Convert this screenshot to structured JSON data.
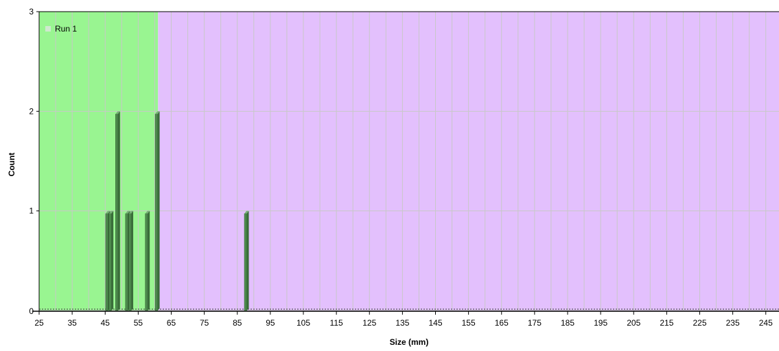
{
  "chart_data": {
    "type": "bar",
    "title": "",
    "xlabel": "Size (mm)",
    "ylabel": "Count",
    "xlim": [
      25,
      249
    ],
    "ylim": [
      0,
      3
    ],
    "x_ticks": [
      25,
      35,
      45,
      55,
      65,
      75,
      85,
      95,
      105,
      115,
      125,
      135,
      145,
      155,
      165,
      175,
      185,
      195,
      205,
      215,
      225,
      235,
      245
    ],
    "y_ticks": [
      0,
      1,
      2,
      3
    ],
    "grid": true,
    "legend_position": "top-left",
    "regions": [
      {
        "from": 25,
        "to": 61,
        "color": "#99f591"
      },
      {
        "from": 61,
        "to": 249,
        "color": "#e3c0fd"
      }
    ],
    "series": [
      {
        "name": "Run 1",
        "color": "#4d8a4d",
        "x": [
          45.5,
          46.5,
          48.5,
          51.5,
          52.5,
          57.5,
          60.5,
          87.5
        ],
        "values": [
          1,
          1,
          2,
          1,
          1,
          1,
          2,
          1
        ]
      }
    ]
  }
}
